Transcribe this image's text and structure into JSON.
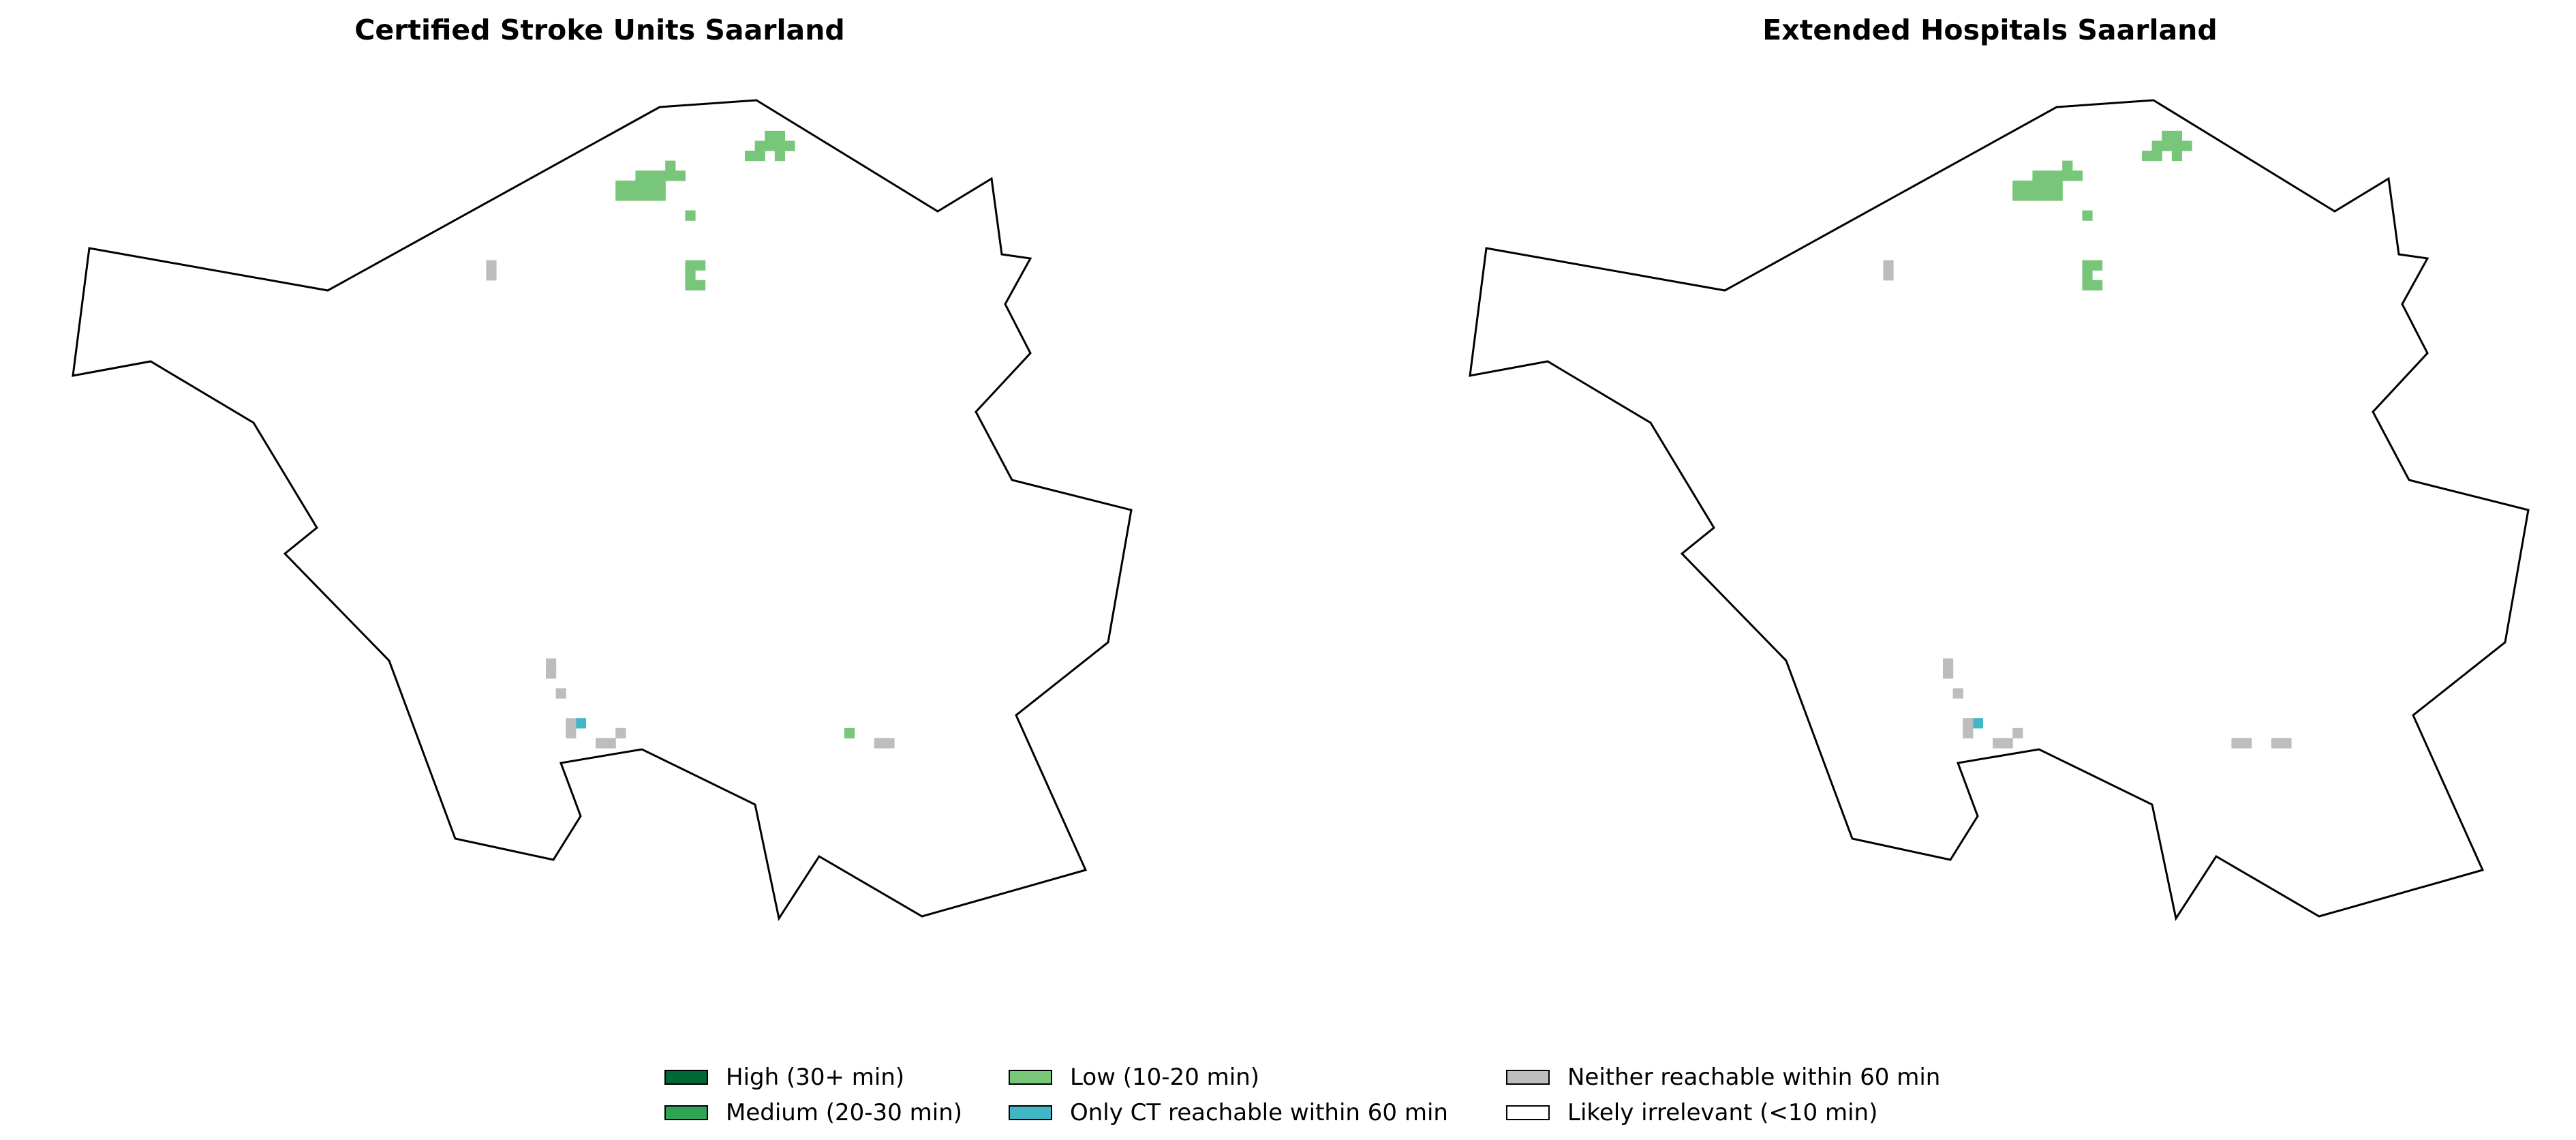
{
  "maps": [
    {
      "title": "Certified Stroke Units Saarland",
      "cells": {
        "low": [
          [
            27,
            3
          ],
          [
            28,
            3
          ],
          [
            26,
            4
          ],
          [
            27,
            4
          ],
          [
            28,
            4
          ],
          [
            29,
            4
          ],
          [
            25,
            5
          ],
          [
            26,
            5
          ],
          [
            28,
            5
          ],
          [
            17,
            6
          ],
          [
            14,
            7
          ],
          [
            15,
            7
          ],
          [
            16,
            7
          ],
          [
            17,
            7
          ],
          [
            18,
            7
          ],
          [
            12,
            8
          ],
          [
            13,
            8
          ],
          [
            14,
            8
          ],
          [
            15,
            8
          ],
          [
            16,
            8
          ],
          [
            12,
            9
          ],
          [
            13,
            9
          ],
          [
            14,
            9
          ],
          [
            15,
            9
          ],
          [
            16,
            9
          ],
          [
            19,
            11
          ],
          [
            19,
            16
          ],
          [
            20,
            16
          ],
          [
            19,
            17
          ],
          [
            19,
            18
          ],
          [
            20,
            18
          ],
          [
            35,
            63
          ]
        ],
        "ct_only": [
          [
            8,
            62
          ]
        ],
        "neither": [
          [
            -1,
            16
          ],
          [
            -1,
            17
          ],
          [
            5,
            56
          ],
          [
            5,
            57
          ],
          [
            6,
            59
          ],
          [
            7,
            62
          ],
          [
            7,
            63
          ],
          [
            10,
            64
          ],
          [
            11,
            64
          ],
          [
            12,
            63
          ],
          [
            38,
            64
          ],
          [
            39,
            64
          ]
        ]
      }
    },
    {
      "title": "Extended Hospitals Saarland",
      "cells": {
        "low": [
          [
            27,
            3
          ],
          [
            28,
            3
          ],
          [
            26,
            4
          ],
          [
            27,
            4
          ],
          [
            28,
            4
          ],
          [
            29,
            4
          ],
          [
            25,
            5
          ],
          [
            26,
            5
          ],
          [
            28,
            5
          ],
          [
            17,
            6
          ],
          [
            14,
            7
          ],
          [
            15,
            7
          ],
          [
            16,
            7
          ],
          [
            17,
            7
          ],
          [
            18,
            7
          ],
          [
            12,
            8
          ],
          [
            13,
            8
          ],
          [
            14,
            8
          ],
          [
            15,
            8
          ],
          [
            16,
            8
          ],
          [
            12,
            9
          ],
          [
            13,
            9
          ],
          [
            14,
            9
          ],
          [
            15,
            9
          ],
          [
            16,
            9
          ],
          [
            19,
            11
          ],
          [
            19,
            16
          ],
          [
            20,
            16
          ],
          [
            19,
            17
          ],
          [
            19,
            18
          ],
          [
            20,
            18
          ]
        ],
        "ct_only": [
          [
            8,
            62
          ]
        ],
        "neither": [
          [
            -1,
            16
          ],
          [
            -1,
            17
          ],
          [
            5,
            56
          ],
          [
            5,
            57
          ],
          [
            6,
            59
          ],
          [
            7,
            62
          ],
          [
            7,
            63
          ],
          [
            10,
            64
          ],
          [
            11,
            64
          ],
          [
            12,
            63
          ],
          [
            34,
            64
          ],
          [
            35,
            64
          ],
          [
            38,
            64
          ],
          [
            39,
            64
          ]
        ]
      }
    }
  ],
  "legend": [
    {
      "label": "High (30+ min)",
      "color": "#006837"
    },
    {
      "label": "Medium (20-30 min)",
      "color": "#31a354"
    },
    {
      "label": "Low (10-20 min)",
      "color": "#78c679"
    },
    {
      "label": "Only CT reachable within 60 min",
      "color": "#41b6c4"
    },
    {
      "label": "Neither reachable within 60 min",
      "color": "#bdbdbd"
    },
    {
      "label": "Likely irrelevant (<10 min)",
      "color": "#ffffff"
    }
  ]
}
